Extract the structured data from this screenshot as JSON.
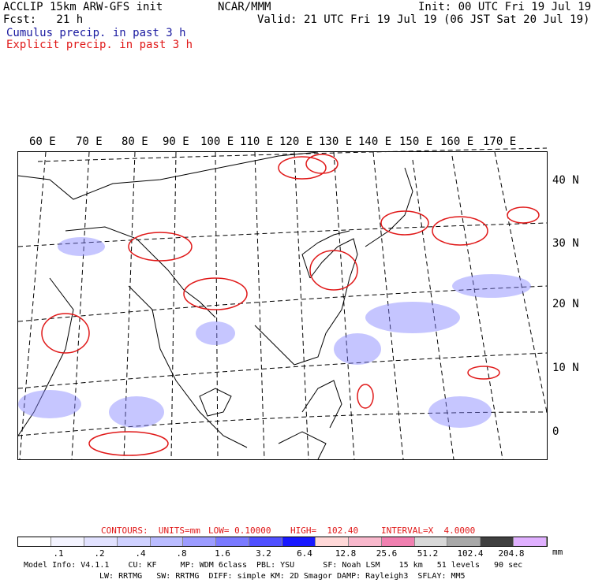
{
  "header": {
    "title_left": "ACCLIP 15km ARW-GFS init",
    "center": "NCAR/MMM",
    "init": "Init: 00 UTC Fri 19 Jul 19",
    "fcst": "Fcst:   21 h",
    "valid": "Valid: 21 UTC Fri 19 Jul 19 (06 JST Sat 20 Jul 19)",
    "legend_cumulus": "Cumulus precip. in past 3 h",
    "legend_explicit": "Explicit precip. in past 3 h"
  },
  "map": {
    "lon_labels": [
      "60 E",
      "70 E",
      "80 E",
      "90 E",
      "100 E",
      "110 E",
      "120 E",
      "130 E",
      "140 E",
      "150 E",
      "160 E",
      "170 E"
    ],
    "lat_labels": [
      "40 N",
      "30 N",
      "20 N",
      "10 N",
      "0"
    ]
  },
  "contours": {
    "units": "CONTOURS:  UNITS=mm",
    "low": "LOW= 0.10000",
    "high": "HIGH=  102.40",
    "interval": "INTERVAL=X  4.0000"
  },
  "colorbar": {
    "colors": [
      "#ffffff",
      "#f4f4ff",
      "#e2e2ff",
      "#cfd1ff",
      "#babcff",
      "#9c9cff",
      "#7a7aff",
      "#5050ff",
      "#1818ff",
      "#ffd8d8",
      "#f8b8cc",
      "#f080b0",
      "#d8d8d8",
      "#a8a8a8",
      "#404040",
      "#e0b0ff"
    ],
    "labels": [
      ".1",
      ".2",
      ".4",
      ".8",
      "1.6",
      "3.2",
      "6.4",
      "12.8",
      "25.6",
      "51.2",
      "102.4",
      "204.8"
    ],
    "units": "mm"
  },
  "footer": {
    "line1": "Model Info: V4.1.1    CU: KF     MP: WDM 6class  PBL: YSU      SF: Noah LSM    15 km   51 levels   90 sec",
    "line2": "LW: RRTMG   SW: RRTMG  DIFF: simple KM: 2D Smagor DAMP: Rayleigh3  SFLAY: MM5"
  }
}
